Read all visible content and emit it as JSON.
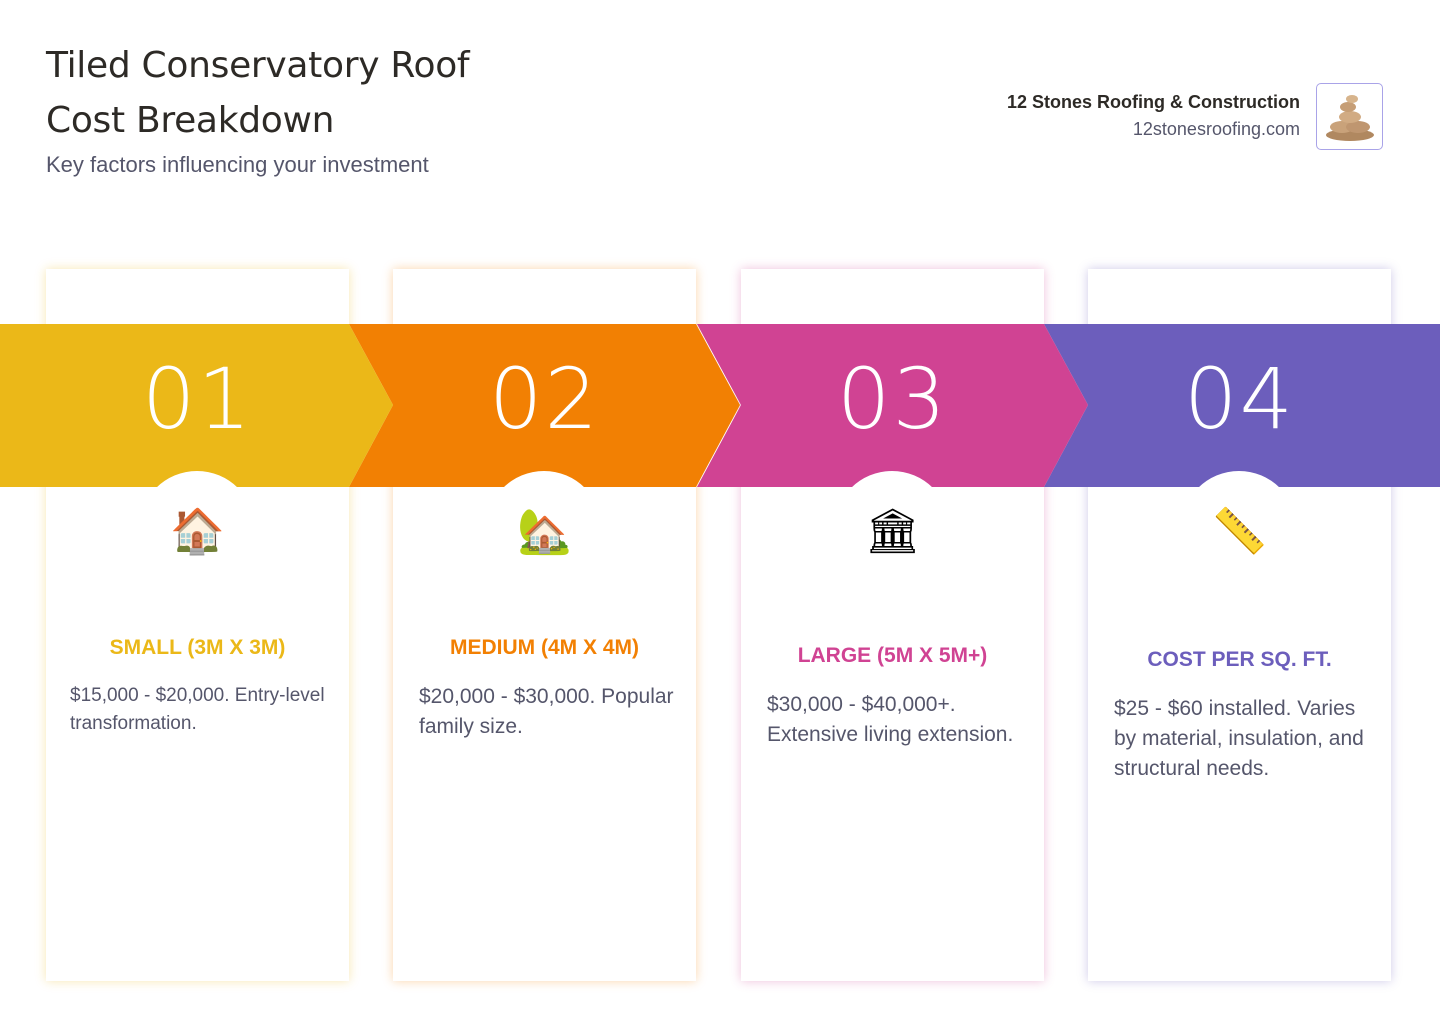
{
  "header": {
    "title_line1": "Tiled Conservatory Roof",
    "title_line2": "Cost Breakdown",
    "subtitle": "Key factors influencing your investment"
  },
  "brand": {
    "name": "12 Stones Roofing & Construction",
    "url": "12stonesroofing.com",
    "logo_icon": "stone-pile-icon"
  },
  "steps": [
    {
      "number": "01",
      "icon": "🏠",
      "icon_name": "house-icon",
      "title": "SMALL (3M X 3M)",
      "description": "$15,000 - $20,000. Entry-level transformation.",
      "color": "#EBB818"
    },
    {
      "number": "02",
      "icon": "🏡",
      "icon_name": "house-with-garden-icon",
      "title": "MEDIUM (4M X 4M)",
      "description": "$20,000 - $30,000. Popular family size.",
      "color": "#F28003"
    },
    {
      "number": "03",
      "icon": "🏛",
      "icon_name": "classical-building-icon",
      "title": "LARGE (5M X 5M+)",
      "description": "$30,000 - $40,000+. Extensive living extension.",
      "color": "#D04393"
    },
    {
      "number": "04",
      "icon": "📏",
      "icon_name": "ruler-icon",
      "title": "COST PER SQ. FT.",
      "description": "$25 - $60 installed. Varies by material, insulation, and structural needs.",
      "color": "#6C5EBC"
    }
  ]
}
